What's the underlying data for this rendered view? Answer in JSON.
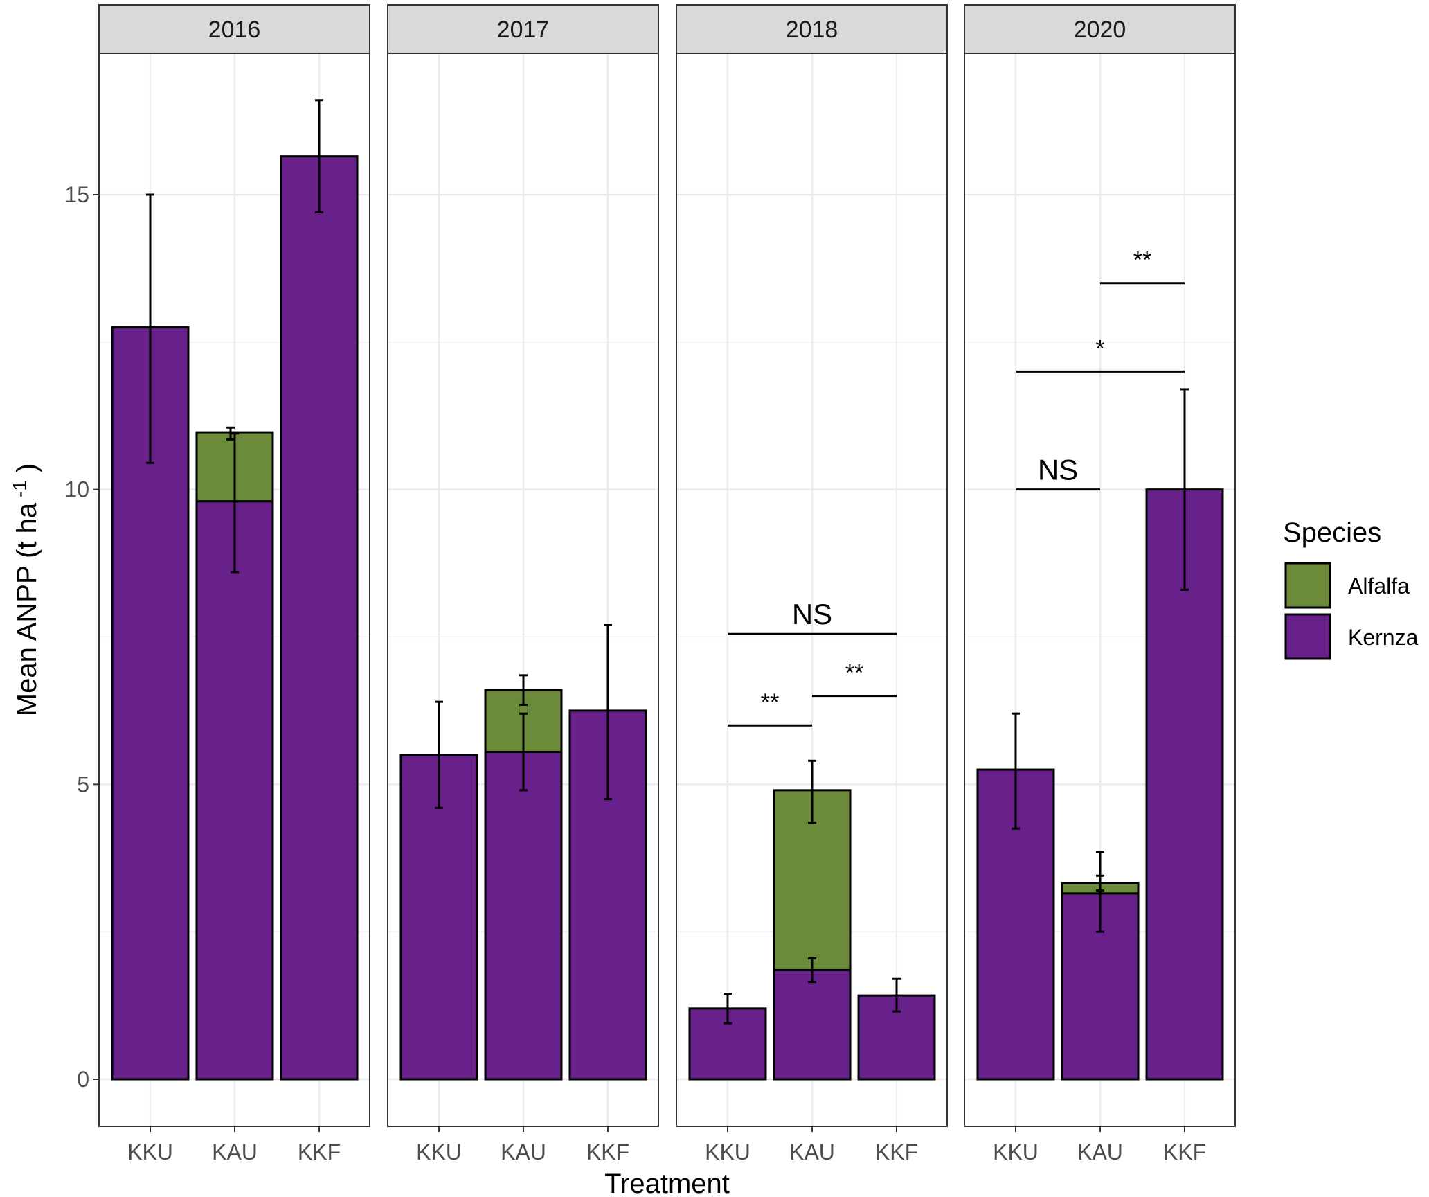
{
  "chart_data": {
    "type": "bar",
    "stacked": true,
    "facet_by": "Year",
    "facets": [
      "2016",
      "2017",
      "2018",
      "2020"
    ],
    "categories": [
      "KKU",
      "KAU",
      "KKF"
    ],
    "xlabel": "Treatment",
    "ylabel": "Mean ANPP (t ha",
    "ylabel_superscript": "-1",
    "ylabel_close": ")",
    "ylim": [
      -0.85,
      17.35
    ],
    "yticks": [
      0,
      5,
      10,
      15
    ],
    "legend_title": "Species",
    "series": [
      {
        "name": "Alfalfa",
        "color": "#6b8a3a"
      },
      {
        "name": "Kernza",
        "color": "#68208b"
      }
    ],
    "panels": [
      {
        "year": "2016",
        "bars": [
          {
            "treatment": "KKU",
            "kernza": 12.75,
            "kernza_err": [
              10.45,
              15.0
            ],
            "alfalfa": 0,
            "alfalfa_err": null
          },
          {
            "treatment": "KAU",
            "kernza": 9.8,
            "kernza_err": [
              8.6,
              10.95
            ],
            "alfalfa": 1.17,
            "alfalfa_err": [
              10.85,
              11.05
            ]
          },
          {
            "treatment": "KKF",
            "kernza": 15.65,
            "kernza_err": [
              14.7,
              16.6
            ],
            "alfalfa": 0,
            "alfalfa_err": null
          }
        ],
        "annotations": []
      },
      {
        "year": "2017",
        "bars": [
          {
            "treatment": "KKU",
            "kernza": 5.5,
            "kernza_err": [
              4.6,
              6.4
            ],
            "alfalfa": 0,
            "alfalfa_err": null
          },
          {
            "treatment": "KAU",
            "kernza": 5.55,
            "kernza_err": [
              4.9,
              6.2
            ],
            "alfalfa": 1.05,
            "alfalfa_err": [
              6.35,
              6.85
            ]
          },
          {
            "treatment": "KKF",
            "kernza": 6.25,
            "kernza_err": [
              4.75,
              7.7
            ],
            "alfalfa": 0,
            "alfalfa_err": null
          }
        ],
        "annotations": []
      },
      {
        "year": "2018",
        "bars": [
          {
            "treatment": "KKU",
            "kernza": 1.2,
            "kernza_err": [
              0.95,
              1.45
            ],
            "alfalfa": 0,
            "alfalfa_err": null
          },
          {
            "treatment": "KAU",
            "kernza": 1.85,
            "kernza_err": [
              1.65,
              2.05
            ],
            "alfalfa": 3.05,
            "alfalfa_err": [
              4.35,
              5.4
            ]
          },
          {
            "treatment": "KKF",
            "kernza": 1.42,
            "kernza_err": [
              1.15,
              1.7
            ],
            "alfalfa": 0,
            "alfalfa_err": null
          }
        ],
        "annotations": [
          {
            "from": "KKU",
            "to": "KKF",
            "y": 7.55,
            "label": "NS",
            "large": true
          },
          {
            "from": "KAU",
            "to": "KKF",
            "y": 6.5,
            "label": "**",
            "large": false
          },
          {
            "from": "KKU",
            "to": "KAU",
            "y": 6.0,
            "label": "**",
            "large": false
          }
        ]
      },
      {
        "year": "2020",
        "bars": [
          {
            "treatment": "KKU",
            "kernza": 5.25,
            "kernza_err": [
              4.25,
              6.2
            ],
            "alfalfa": 0,
            "alfalfa_err": null
          },
          {
            "treatment": "KAU",
            "kernza": 3.15,
            "kernza_err": [
              2.5,
              3.85
            ],
            "alfalfa": 0.18,
            "alfalfa_err": [
              3.2,
              3.45
            ]
          },
          {
            "treatment": "KKF",
            "kernza": 10.0,
            "kernza_err": [
              8.3,
              11.7
            ],
            "alfalfa": 0,
            "alfalfa_err": null
          }
        ],
        "annotations": [
          {
            "from": "KAU",
            "to": "KKF",
            "y": 13.5,
            "label": "**",
            "large": false
          },
          {
            "from": "KKU",
            "to": "KKF",
            "y": 12.0,
            "label": "*",
            "large": false
          },
          {
            "from": "KKU",
            "to": "KAU",
            "y": 10.0,
            "label": "NS",
            "large": true
          }
        ]
      }
    ]
  }
}
